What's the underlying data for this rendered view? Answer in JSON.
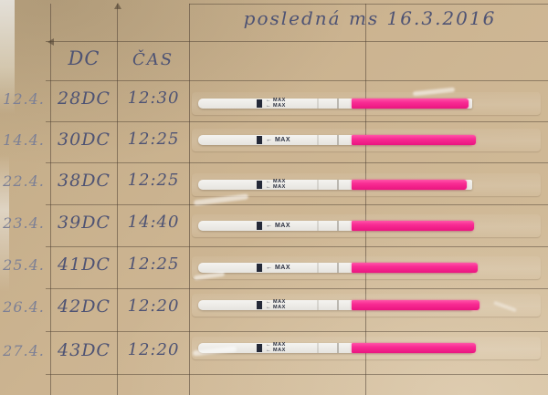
{
  "title": "posledná ms 16.3.2016",
  "table": {
    "headers": {
      "dc": "DC",
      "cas": "ČAS"
    },
    "rows": [
      {
        "date": "12.4.",
        "dc": "28DC",
        "time": "12:30"
      },
      {
        "date": "14.4.",
        "dc": "30DC",
        "time": "12:25"
      },
      {
        "date": "22.4.",
        "dc": "38DC",
        "time": "12:25"
      },
      {
        "date": "23.4.",
        "dc": "39DC",
        "time": "14:40"
      },
      {
        "date": "25.4.",
        "dc": "41DC",
        "time": "12:25"
      },
      {
        "date": "26.4.",
        "dc": "42DC",
        "time": "12:20"
      },
      {
        "date": "27.4.",
        "dc": "43DC",
        "time": "12:20"
      }
    ]
  },
  "strip": {
    "label": "← MAX"
  },
  "colors": {
    "board": "#ccb491",
    "ink": "#4e5374",
    "pencil": "#7d8095",
    "strip_white": "#eceae6",
    "strip_pink": "#f82b93",
    "grid_line": "#50422f"
  }
}
